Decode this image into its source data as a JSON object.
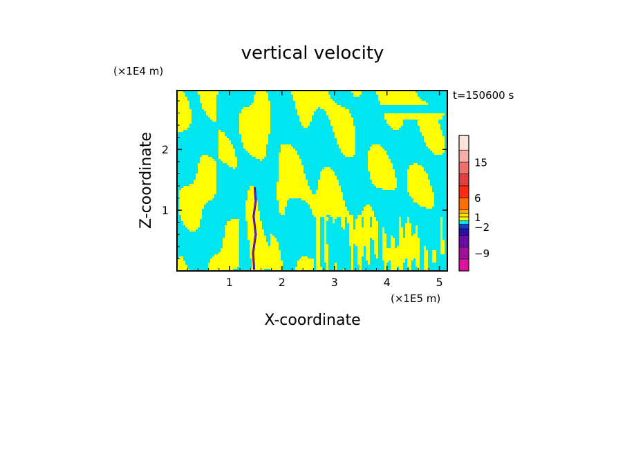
{
  "chart_data": {
    "type": "heatmap",
    "title": "vertical velocity",
    "xlabel": "X-coordinate",
    "ylabel": "Z-coordinate",
    "x_unit": "(×1E5 m)",
    "y_unit": "(×1E4 m)",
    "time_label": "t=150600 s",
    "xlim": [
      0,
      5.15
    ],
    "ylim": [
      0,
      2.97
    ],
    "x_ticks": [
      1,
      2,
      3,
      4,
      5
    ],
    "x_tick_labels": [
      "1",
      "2",
      "3",
      "4",
      "5"
    ],
    "y_ticks": [
      1,
      2
    ],
    "y_tick_labels": [
      "1",
      "2"
    ],
    "grid": false,
    "colorbar": {
      "levels": [
        -12,
        -9,
        -6,
        -3,
        -2,
        -1,
        0,
        1,
        2,
        3,
        6,
        9,
        12,
        15,
        18,
        21
      ],
      "colors": [
        "#e010a0",
        "#a0109a",
        "#6a0ca8",
        "#2a10a8",
        "#1040c8",
        "#00e6f0",
        "#ffff00",
        "#ffe000",
        "#ffaa00",
        "#ff7000",
        "#ff2a10",
        "#e04040",
        "#f07070",
        "#f4b0a8",
        "#fce4dc"
      ],
      "tick_labels": [
        {
          "value": -9,
          "label": "−9"
        },
        {
          "value": -2,
          "label": "−2"
        },
        {
          "value": 1,
          "label": "1"
        },
        {
          "value": 6,
          "label": "6"
        },
        {
          "value": 15,
          "label": "15"
        }
      ]
    },
    "field_colors": {
      "updraft": "#ffff00",
      "downdraft": "#00e6f0"
    }
  }
}
